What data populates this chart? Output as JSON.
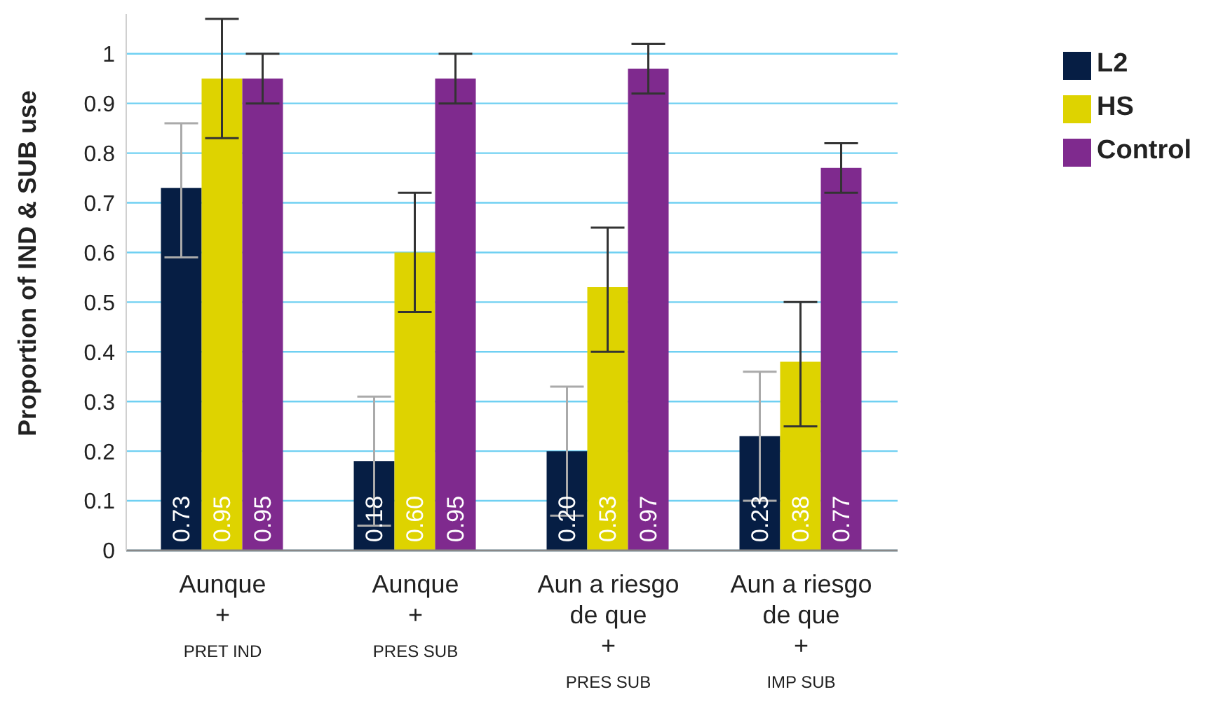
{
  "chart_data": {
    "type": "bar",
    "ylabel": "Proportion of IND & SUB use",
    "categories": [
      "Aunque\n+\nPRET IND",
      "Aunque\n+\nPRES SUB",
      "Aun a riesgo\nde que\n+\nPRES SUB",
      "Aun a riesgo\nde que\n+\nIMP SUB"
    ],
    "series": [
      {
        "name": "L2",
        "color": "#061e44",
        "values": [
          0.73,
          0.18,
          0.2,
          0.23
        ],
        "value_labels": [
          "0.73",
          "0.18",
          "0.20",
          "0.23"
        ],
        "errors": [
          [
            0.59,
            0.86
          ],
          [
            0.05,
            0.31
          ],
          [
            0.07,
            0.33
          ],
          [
            0.1,
            0.36
          ]
        ]
      },
      {
        "name": "HS",
        "color": "#ded300",
        "values": [
          0.95,
          0.6,
          0.53,
          0.38
        ],
        "value_labels": [
          "0.95",
          "0.60",
          "0.53",
          "0.38"
        ],
        "errors": [
          [
            0.83,
            1.07
          ],
          [
            0.48,
            0.72
          ],
          [
            0.4,
            0.65
          ],
          [
            0.25,
            0.5
          ]
        ]
      },
      {
        "name": "Control",
        "color": "#7f2a8e",
        "values": [
          0.95,
          0.95,
          0.97,
          0.77
        ],
        "value_labels": [
          "0.95",
          "0.95",
          "0.97",
          "0.77"
        ],
        "errors": [
          [
            0.9,
            1.0
          ],
          [
            0.9,
            1.0
          ],
          [
            0.92,
            1.02
          ],
          [
            0.72,
            0.82
          ]
        ]
      }
    ],
    "ylim": [
      0,
      1.08
    ],
    "yticks": [
      0,
      0.1,
      0.2,
      0.3,
      0.4,
      0.5,
      0.6,
      0.7,
      0.8,
      0.9,
      1
    ],
    "grid": "y",
    "legend": "top right"
  }
}
